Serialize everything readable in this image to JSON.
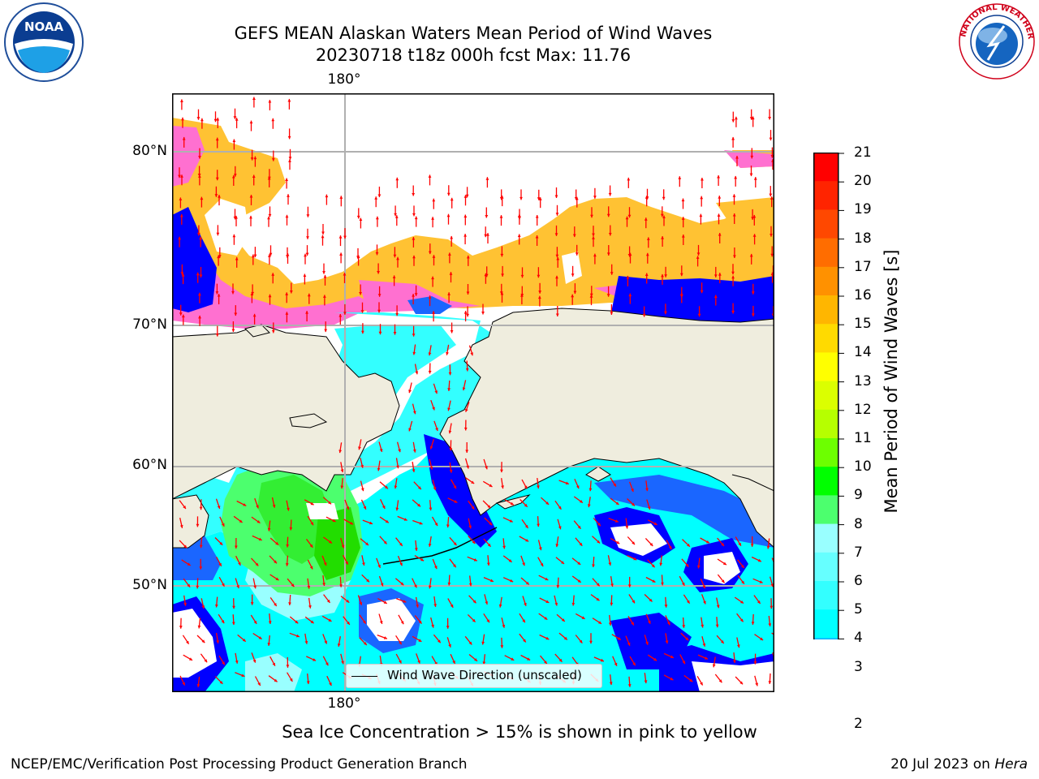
{
  "header": {
    "title_line1": "GEFS MEAN Alaskan Waters Mean Period of Wind Waves",
    "title_line2": "20230718 t18z 000h fcst   Max: 11.76"
  },
  "logos": {
    "noaa_text": "NOAA",
    "nws_text": "NATIONAL WEATHER SERVICE"
  },
  "map": {
    "lon_label_top": "180°",
    "lon_label_bottom": "180°",
    "lat_labels": [
      "80°N",
      "70°N",
      "60°N",
      "50°N"
    ],
    "legend_text": "Wind Wave Direction (unscaled)",
    "colors": {
      "land": "#efedde",
      "ocean_blue": "#0000ff",
      "cyan": "#00ffff",
      "green": "#33ff33",
      "ice_pink": "#ff66cc",
      "ice_yellow": "#ffcc33",
      "arrow": "#ff0000"
    }
  },
  "colorbar": {
    "title": "Mean Period of Wind Waves [s]",
    "ticks": [
      "21",
      "20",
      "19",
      "18",
      "17",
      "16",
      "15",
      "14",
      "13",
      "12",
      "11",
      "10",
      "9",
      "8",
      "7",
      "6",
      "5",
      "4",
      "3",
      "2"
    ],
    "colors": [
      "#ff0000",
      "#ff2400",
      "#ff4800",
      "#ff6d00",
      "#ff9100",
      "#ffb600",
      "#ffda00",
      "#ffff00",
      "#dbff00",
      "#b6ff00",
      "#6dff00",
      "#00ff00",
      "#4cff6e",
      "#99ffff",
      "#66ffff",
      "#33ffff",
      "#00ffff",
      "#00b0ff",
      "#0060ff",
      "#0000ff"
    ]
  },
  "caption": "Sea Ice Concentration > 15% is shown in pink to yellow",
  "footer": {
    "left": "NCEP/EMC/Verification Post Processing Product Generation Branch",
    "right_prefix": "20 Jul 2023 on ",
    "right_host": "Hera"
  }
}
